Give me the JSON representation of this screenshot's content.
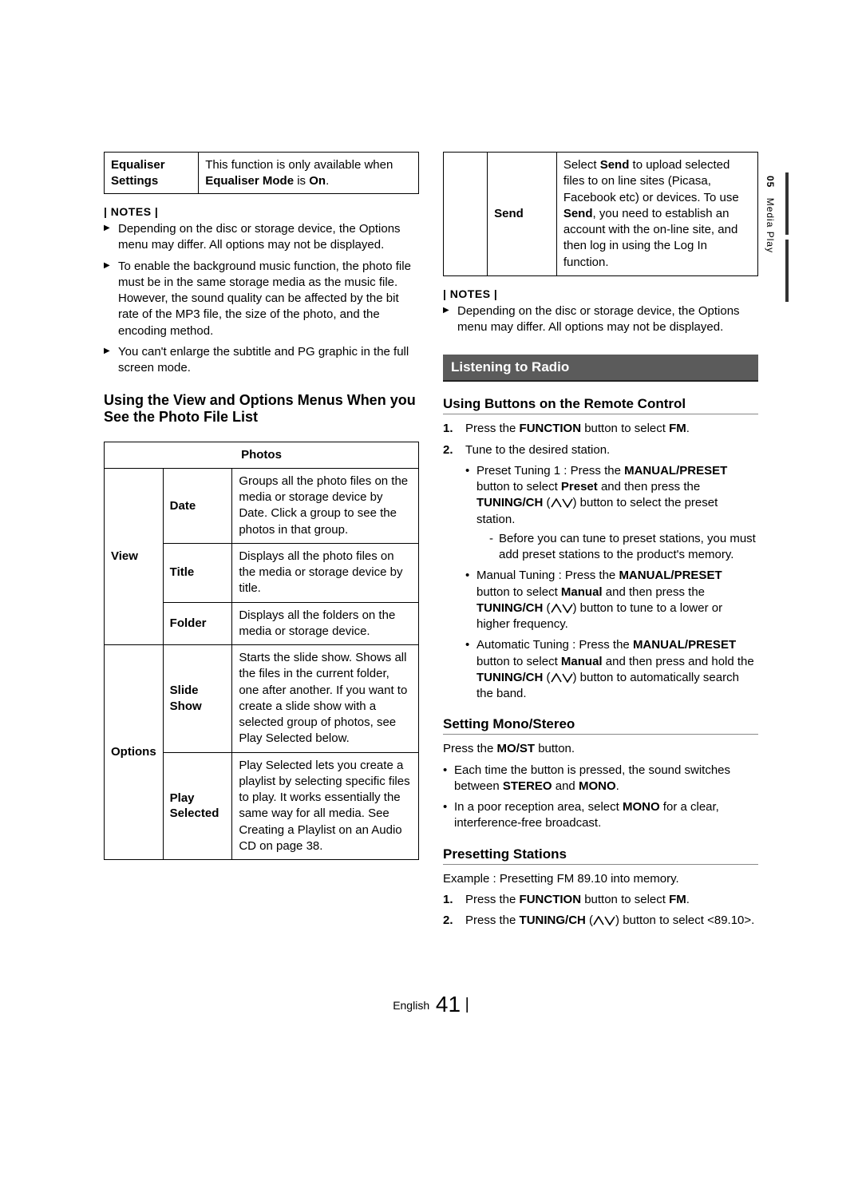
{
  "sideTab": {
    "chapter": "05",
    "label": "Media Play"
  },
  "footer": {
    "lang": "English",
    "page": "41"
  },
  "left": {
    "eqTable": {
      "label": "Equaliser Settings",
      "desc_parts": [
        "This function is only available when ",
        "Equaliser Mode",
        " is ",
        "On",
        "."
      ]
    },
    "notesHead": "| NOTES |",
    "notes": [
      "Depending on the disc or storage device, the Options menu may differ. All options may not be displayed.",
      "To enable the background music function, the photo file must be in the same storage media as the music file. However, the sound quality can be affected by the bit rate of the MP3 file, the size of the photo, and the encoding method.",
      "You can't enlarge the subtitle and PG graphic in the full screen mode."
    ],
    "subhead": "Using the View and Options Menus When you See the Photo File List",
    "photosHeader": "Photos",
    "rows": {
      "view": {
        "group": "View",
        "items": [
          {
            "label": "Date",
            "desc": "Groups all the photo files on the media or storage device by Date. Click a group to see the photos in that group."
          },
          {
            "label": "Title",
            "desc": "Displays all the photo files on the media or storage device by title."
          },
          {
            "label": "Folder",
            "desc": "Displays all the folders on the media or storage device."
          }
        ]
      },
      "options": {
        "group": "Options",
        "items": [
          {
            "label": "Slide Show",
            "desc": "Starts the slide show. Shows all the files in the current folder, one after another. If you want to create a slide show with a selected group of photos, see Play Selected below."
          },
          {
            "label": "Play Selected",
            "desc": "Play Selected lets you create a playlist by selecting specific files to play. It works essentially the same way for all media. See Creating a Playlist on an Audio CD on page 38."
          }
        ]
      }
    }
  },
  "right": {
    "sendTable": {
      "label": "Send",
      "desc_parts": [
        "Select ",
        "Send",
        " to upload selected files to on line sites (Picasa, Facebook etc) or devices. To use ",
        "Send",
        ", you need to establish an account with the on-line site, and then log in using the Log In function."
      ]
    },
    "notesHead": "| NOTES |",
    "notes": [
      "Depending on the disc or storage device, the Options menu may differ. All options may not be displayed."
    ],
    "sectionBar": "Listening to Radio",
    "sub1": "Using Buttons on the Remote Control",
    "steps1": [
      {
        "num": "1.",
        "parts": [
          "Press the ",
          "FUNCTION",
          " button to select ",
          "FM",
          "."
        ]
      },
      {
        "num": "2.",
        "parts": [
          "Tune to the desired station."
        ]
      }
    ],
    "tuneBullets": [
      {
        "parts": [
          "Preset Tuning 1 : Press the ",
          "MANUAL/PRESET",
          " button to select ",
          "Preset",
          " and then press the ",
          "TUNING/CH",
          " (",
          "UPDOWN",
          ") button to select the preset station."
        ],
        "dash": [
          "Before you can tune to preset stations, you must add preset stations to the product's memory."
        ]
      },
      {
        "parts": [
          "Manual Tuning : Press the ",
          "MANUAL/PRESET",
          " button to select ",
          "Manual",
          " and then press the ",
          "TUNING/CH",
          " (",
          "UPDOWN",
          ") button to tune to a lower or higher frequency."
        ]
      },
      {
        "parts": [
          "Automatic Tuning : Press the ",
          "MANUAL/PRESET",
          " button to select ",
          "Manual",
          " and then press and hold the ",
          "TUNING/CH",
          " (",
          "UPDOWN",
          ") button to automatically search the band."
        ]
      }
    ],
    "sub2": "Setting Mono/Stereo",
    "mono_parts": [
      "Press the ",
      "MO/ST",
      " button."
    ],
    "monoBullets": [
      {
        "parts": [
          "Each time the button is pressed, the sound switches between ",
          "STEREO",
          " and ",
          "MONO",
          "."
        ]
      },
      {
        "parts": [
          "In a poor reception area, select ",
          "MONO",
          " for a clear, interference-free broadcast."
        ]
      }
    ],
    "sub3": "Presetting Stations",
    "presetExample": "Example : Presetting FM 89.10 into memory.",
    "steps3": [
      {
        "num": "1.",
        "parts": [
          "Press the ",
          "FUNCTION",
          " button to select ",
          "FM",
          "."
        ]
      },
      {
        "num": "2.",
        "parts": [
          "Press the ",
          "TUNING/CH",
          " (",
          "UPDOWN",
          ") button to select <89.10>."
        ]
      }
    ]
  }
}
